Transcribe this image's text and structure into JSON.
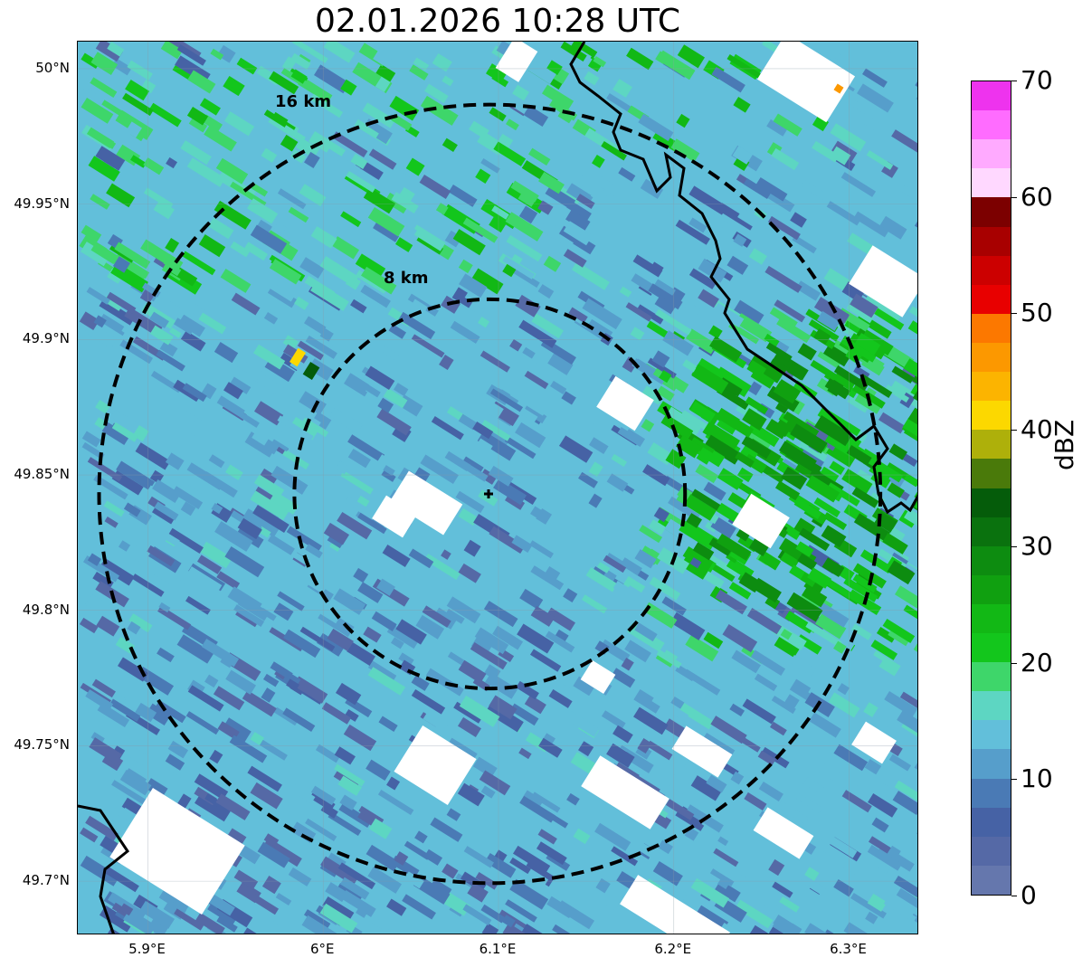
{
  "title": "02.01.2026 10:28 UTC",
  "map": {
    "lon_range": [
      5.86,
      6.34
    ],
    "lat_range": [
      49.68,
      50.01
    ],
    "radar_site": {
      "lon": 6.095,
      "lat": 49.843
    },
    "range_rings": [
      {
        "label": "8 km",
        "radius_km": 8
      },
      {
        "label": "16 km",
        "radius_km": 16
      }
    ],
    "lat_ticks": [
      {
        "value": 50.0,
        "label": "50°N"
      },
      {
        "value": 49.95,
        "label": "49.95°N"
      },
      {
        "value": 49.9,
        "label": "49.9°N"
      },
      {
        "value": 49.85,
        "label": "49.85°N"
      },
      {
        "value": 49.8,
        "label": "49.8°N"
      },
      {
        "value": 49.75,
        "label": "49.75°N"
      },
      {
        "value": 49.7,
        "label": "49.7°N"
      }
    ],
    "lon_ticks": [
      {
        "value": 5.9,
        "label": "5.9°E"
      },
      {
        "value": 6.0,
        "label": "6°E"
      },
      {
        "value": 6.1,
        "label": "6.1°E"
      },
      {
        "value": 6.2,
        "label": "6.2°E"
      },
      {
        "value": 6.3,
        "label": "6.3°E"
      }
    ],
    "background_color": "#62bfda"
  },
  "colorbar": {
    "label": "dBZ",
    "min": 0,
    "max": 70,
    "ticks": [
      "0",
      "10",
      "20",
      "30",
      "40",
      "50",
      "60",
      "70"
    ],
    "colors": [
      "#6577ad",
      "#5569a6",
      "#4662a5",
      "#4a7ab5",
      "#569ecb",
      "#62bfda",
      "#5dd6c2",
      "#3ed66a",
      "#13c61c",
      "#12b815",
      "#10a010",
      "#0d8c10",
      "#0a720e",
      "#055c0a",
      "#4a7a0a",
      "#aeb00a",
      "#fcd800",
      "#fcb400",
      "#fc9800",
      "#fc7800",
      "#e80000",
      "#cc0000",
      "#a80000",
      "#7c0000",
      "#ffd8ff",
      "#ffaaff",
      "#ff6cff",
      "#ee33ee"
    ]
  }
}
